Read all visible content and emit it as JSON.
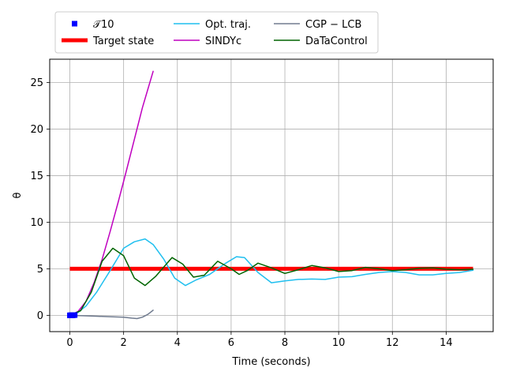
{
  "chart_data": {
    "type": "line",
    "xlabel": "Time (seconds)",
    "ylabel": "θ",
    "xlim": [
      -0.75,
      15.75
    ],
    "ylim": [
      -1.75,
      27.5
    ],
    "xticks": [
      0,
      2,
      4,
      6,
      8,
      10,
      12,
      14
    ],
    "yticks": [
      0,
      5,
      10,
      15,
      20,
      25
    ],
    "grid": true,
    "legend_placement": "top, above plot, 3 columns",
    "series": [
      {
        "name": "𝒯10",
        "kind": "scatter",
        "color": "#0000ff",
        "x": [
          0.0,
          0.02,
          0.04,
          0.06,
          0.08,
          0.1,
          0.12,
          0.14,
          0.16,
          0.18
        ],
        "y": [
          0.0,
          0.0,
          0.0,
          0.01,
          0.01,
          0.01,
          0.02,
          0.02,
          0.03,
          0.03
        ]
      },
      {
        "name": "Target state",
        "kind": "line",
        "color": "#ff0000",
        "width": 5,
        "x": [
          0,
          15
        ],
        "y": [
          5,
          5
        ]
      },
      {
        "name": "Opt. traj.",
        "kind": "line",
        "color": "#1fbfef",
        "width": 1.5,
        "x": [
          0,
          0.3,
          0.6,
          1.0,
          1.5,
          2.0,
          2.4,
          2.8,
          3.1,
          3.5,
          3.9,
          4.3,
          4.7,
          5.2,
          5.8,
          6.2,
          6.5,
          7.0,
          7.5,
          8.0,
          8.5,
          9.0,
          9.5,
          10.0,
          10.5,
          11.0,
          11.5,
          12.0,
          12.5,
          13.0,
          13.5,
          14.0,
          14.5,
          15.0
        ],
        "y": [
          0,
          0.3,
          1.0,
          2.5,
          4.8,
          7.2,
          7.9,
          8.2,
          7.6,
          6.0,
          4.0,
          3.2,
          3.8,
          4.4,
          5.6,
          6.3,
          6.2,
          4.6,
          3.5,
          3.7,
          3.85,
          3.9,
          3.85,
          4.1,
          4.15,
          4.4,
          4.6,
          4.7,
          4.6,
          4.35,
          4.35,
          4.5,
          4.6,
          4.85
        ]
      },
      {
        "name": "SINDYc",
        "kind": "line",
        "color": "#bf00bf",
        "width": 1.5,
        "x": [
          0,
          0.3,
          0.6,
          0.9,
          1.2,
          1.5,
          1.8,
          2.1,
          2.4,
          2.7,
          3.1
        ],
        "y": [
          0,
          0.4,
          1.5,
          3.5,
          6.0,
          9.0,
          12.2,
          15.5,
          18.9,
          22.3,
          26.2
        ]
      },
      {
        "name": "CGP − LCB",
        "kind": "line",
        "color": "#707b8f",
        "width": 1.5,
        "x": [
          0,
          0.5,
          1.0,
          1.5,
          2.0,
          2.3,
          2.5,
          2.7,
          2.9,
          3.1
        ],
        "y": [
          0,
          -0.05,
          -0.1,
          -0.15,
          -0.2,
          -0.3,
          -0.35,
          -0.2,
          0.1,
          0.55
        ]
      },
      {
        "name": "DaTaControl",
        "kind": "line",
        "color": "#006400",
        "width": 1.5,
        "x": [
          0,
          0.4,
          0.8,
          1.2,
          1.6,
          2.0,
          2.4,
          2.8,
          3.2,
          3.8,
          4.2,
          4.6,
          5.0,
          5.5,
          6.0,
          6.3,
          6.6,
          7.0,
          7.5,
          8.0,
          8.5,
          9.0,
          9.5,
          10.0,
          10.5,
          11.0,
          11.5,
          12.0,
          12.5,
          13.0,
          13.5,
          14.0,
          14.5,
          15.0
        ],
        "y": [
          0,
          0.5,
          2.5,
          5.8,
          7.2,
          6.4,
          4.0,
          3.2,
          4.2,
          6.2,
          5.5,
          4.1,
          4.3,
          5.8,
          5.0,
          4.4,
          4.8,
          5.6,
          5.1,
          4.5,
          4.9,
          5.35,
          5.1,
          4.7,
          4.8,
          5.15,
          5.0,
          4.8,
          4.9,
          5.05,
          5.1,
          4.95,
          4.9,
          4.95
        ]
      }
    ]
  }
}
